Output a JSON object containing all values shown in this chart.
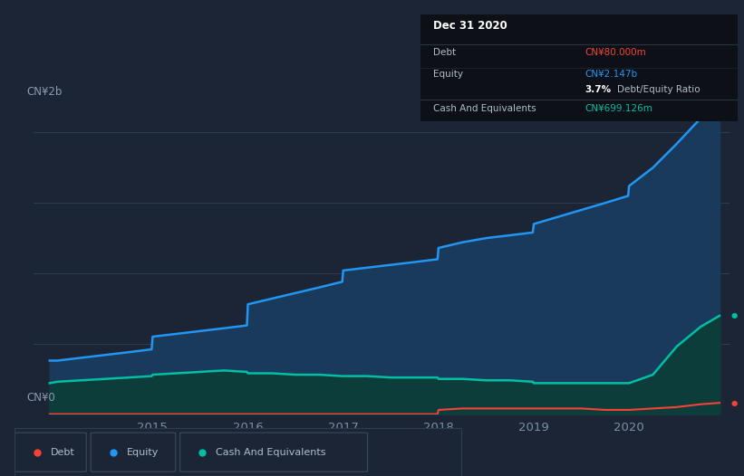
{
  "background_color": "#1c2535",
  "plot_bg_color": "#1c2535",
  "ylabel_top": "CN¥2b",
  "ylabel_bottom": "CN¥0",
  "equity_color": "#2196f3",
  "debt_color": "#f44336",
  "cash_color": "#00bfa5",
  "equity_fill": "#1a3a5c",
  "cash_fill": "#0d3d3a",
  "tooltip": {
    "date": "Dec 31 2020",
    "debt_label": "Debt",
    "debt_value": "CN¥80.000m",
    "equity_label": "Equity",
    "equity_value": "CN¥2.147b",
    "ratio_value": "3.7%",
    "ratio_label": "Debt/Equity Ratio",
    "cash_label": "Cash And Equivalents",
    "cash_value": "CN¥699.126m"
  },
  "legend": [
    {
      "label": "Debt",
      "color": "#f44336"
    },
    {
      "label": "Equity",
      "color": "#2196f3"
    },
    {
      "label": "Cash And Equivalents",
      "color": "#00bfa5"
    }
  ],
  "x_data": [
    2013.92,
    2014.0,
    2014.25,
    2014.5,
    2014.75,
    2014.99,
    2015.0,
    2015.25,
    2015.5,
    2015.75,
    2015.99,
    2016.0,
    2016.25,
    2016.5,
    2016.75,
    2016.99,
    2017.0,
    2017.25,
    2017.5,
    2017.75,
    2017.99,
    2018.0,
    2018.25,
    2018.5,
    2018.75,
    2018.99,
    2019.0,
    2019.25,
    2019.5,
    2019.75,
    2019.99,
    2020.0,
    2020.25,
    2020.5,
    2020.75,
    2020.95
  ],
  "equity_data": [
    0.38,
    0.38,
    0.4,
    0.42,
    0.44,
    0.46,
    0.55,
    0.57,
    0.59,
    0.61,
    0.63,
    0.78,
    0.82,
    0.86,
    0.9,
    0.94,
    1.02,
    1.04,
    1.06,
    1.08,
    1.1,
    1.18,
    1.22,
    1.25,
    1.27,
    1.29,
    1.35,
    1.4,
    1.45,
    1.5,
    1.55,
    1.62,
    1.75,
    1.92,
    2.1,
    2.147
  ],
  "cash_data": [
    0.22,
    0.23,
    0.24,
    0.25,
    0.26,
    0.27,
    0.28,
    0.29,
    0.3,
    0.31,
    0.3,
    0.29,
    0.29,
    0.28,
    0.28,
    0.27,
    0.27,
    0.27,
    0.26,
    0.26,
    0.26,
    0.25,
    0.25,
    0.24,
    0.24,
    0.23,
    0.22,
    0.22,
    0.22,
    0.22,
    0.22,
    0.22,
    0.28,
    0.48,
    0.62,
    0.699
  ],
  "debt_data": [
    0.0,
    0.0,
    0.0,
    0.0,
    0.0,
    0.0,
    0.0,
    0.0,
    0.0,
    0.0,
    0.0,
    0.0,
    0.0,
    0.0,
    0.0,
    0.0,
    0.0,
    0.0,
    0.0,
    0.0,
    0.0,
    0.03,
    0.04,
    0.04,
    0.04,
    0.04,
    0.04,
    0.04,
    0.04,
    0.03,
    0.03,
    0.03,
    0.04,
    0.05,
    0.07,
    0.08
  ],
  "ylim": [
    0,
    2.4
  ],
  "xlim": [
    2013.75,
    2021.05
  ],
  "grid_lines": [
    0.0,
    0.5,
    1.0,
    1.5,
    2.0
  ]
}
